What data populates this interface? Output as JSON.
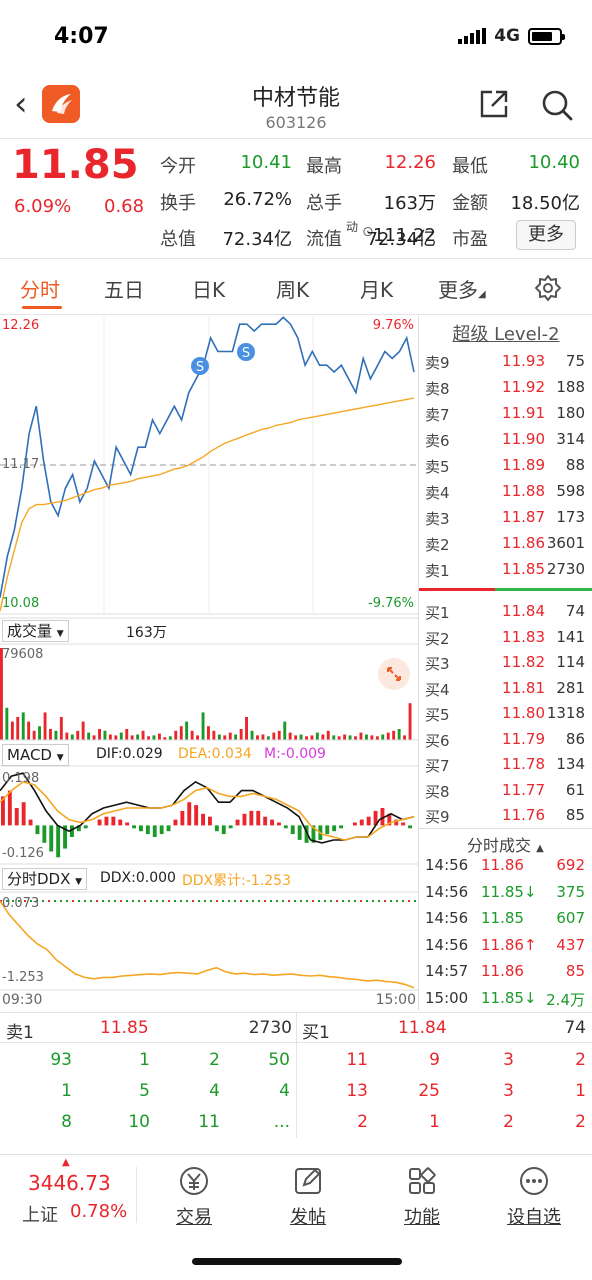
{
  "status_bar": {
    "time": "4:07",
    "network": "4G"
  },
  "header": {
    "stock_name": "中材节能",
    "stock_code": "603126"
  },
  "quote": {
    "price": "11.85",
    "change_pct": "6.09%",
    "change": "0.68",
    "fields": [
      {
        "label": "今开",
        "value": "10.41",
        "color": "green"
      },
      {
        "label": "最高",
        "value": "12.26",
        "color": "red"
      },
      {
        "label": "最低",
        "value": "10.40",
        "color": "green"
      },
      {
        "label": "换手",
        "value": "26.72%",
        "color": "black"
      },
      {
        "label": "总手",
        "value": "163万",
        "color": "black"
      },
      {
        "label": "金额",
        "value": "18.50亿",
        "color": "black"
      },
      {
        "label": "总值",
        "value": "72.34亿",
        "color": "black"
      },
      {
        "label": "流值",
        "value": "72.34亿",
        "color": "black"
      },
      {
        "label": "市盈",
        "value": "111.22",
        "color": "black"
      }
    ],
    "pe_superscript": "动",
    "more_label": "更多"
  },
  "tabs": [
    "分时",
    "五日",
    "日K",
    "周K",
    "月K",
    "更多"
  ],
  "active_tab": 0,
  "chart_data": [
    {
      "type": "line",
      "name": "intraday",
      "y_top_label": "12.26",
      "y_bottom_label": "10.08",
      "y_mid_label": "11.17",
      "pct_top_label": "9.76%",
      "pct_bottom_label": "-9.76%",
      "ylim": [
        10.08,
        12.26
      ],
      "x_start": "09:30",
      "x_end": "15:00",
      "series": [
        {
          "values": [
            10.2,
            10.5,
            10.7,
            11.0,
            11.4,
            11.6,
            11.2,
            10.9,
            10.8,
            11.0,
            11.1,
            10.9,
            11.0,
            11.2,
            11.1,
            11.0,
            11.3,
            11.2,
            11.1,
            11.3,
            11.3,
            11.5,
            11.4,
            11.5,
            11.6,
            11.5,
            11.7,
            11.8,
            11.9,
            12.1,
            12.0,
            12.0,
            12.0,
            12.2,
            12.2,
            12.15,
            12.2,
            12.2,
            12.2,
            12.25,
            12.2,
            12.1,
            11.9,
            12.0,
            11.9,
            11.9,
            11.85,
            11.9,
            11.8,
            11.7,
            11.95,
            11.8,
            11.9,
            12.0,
            11.95,
            12.0,
            12.1,
            11.85
          ]
        },
        {
          "values": [
            10.1,
            10.35,
            10.55,
            10.75,
            10.85,
            10.88,
            10.88,
            10.89,
            10.9,
            10.91,
            10.93,
            10.95,
            10.97,
            10.99,
            11.0,
            11.02,
            11.03,
            11.04,
            11.05,
            11.07,
            11.08,
            11.09,
            11.1,
            11.12,
            11.14,
            11.15,
            11.17,
            11.2,
            11.23,
            11.27,
            11.3,
            11.33,
            11.35,
            11.37,
            11.39,
            11.41,
            11.43,
            11.44,
            11.46,
            11.47,
            11.48,
            11.5,
            11.51,
            11.52,
            11.53,
            11.54,
            11.55,
            11.56,
            11.57,
            11.58,
            11.59,
            11.6,
            11.61,
            11.62,
            11.63,
            11.64,
            11.65,
            11.66
          ]
        }
      ],
      "markers": [
        "S",
        "S"
      ]
    },
    {
      "type": "bar",
      "name": "volume",
      "label": "成交量",
      "total_label": "163万",
      "max_label": "79608",
      "values": [
        1.0,
        0.35,
        0.2,
        0.25,
        0.3,
        0.2,
        0.1,
        0.15,
        0.3,
        0.12,
        0.1,
        0.25,
        0.08,
        0.06,
        0.1,
        0.2,
        0.08,
        0.05,
        0.12,
        0.1,
        0.06,
        0.05,
        0.08,
        0.12,
        0.05,
        0.06,
        0.1,
        0.04,
        0.05,
        0.07,
        0.03,
        0.04,
        0.1,
        0.15,
        0.2,
        0.1,
        0.05,
        0.3,
        0.15,
        0.1,
        0.06,
        0.05,
        0.08,
        0.06,
        0.12,
        0.25,
        0.1,
        0.05,
        0.06,
        0.04,
        0.08,
        0.1,
        0.2,
        0.08,
        0.05,
        0.06,
        0.04,
        0.05,
        0.08,
        0.06,
        0.1,
        0.05,
        0.04,
        0.06,
        0.05,
        0.04,
        0.08,
        0.06,
        0.05,
        0.04,
        0.06,
        0.08,
        0.1,
        0.12,
        0.05,
        0.4
      ]
    },
    {
      "type": "bar",
      "name": "macd",
      "label": "MACD",
      "dif_label": "DIF:0.029",
      "dea_label": "DEA:0.034",
      "m_label": "M:-0.009",
      "y_top_label": "0.198",
      "y_bottom_label": "-0.126",
      "ylim": [
        -0.126,
        0.198
      ],
      "values": [
        0.1,
        0.12,
        0.06,
        0.08,
        0.02,
        -0.03,
        -0.06,
        -0.09,
        -0.11,
        -0.08,
        -0.04,
        -0.02,
        -0.01,
        0.0,
        0.02,
        0.03,
        0.03,
        0.02,
        0.01,
        -0.01,
        -0.02,
        -0.03,
        -0.04,
        -0.03,
        -0.02,
        0.02,
        0.05,
        0.08,
        0.07,
        0.04,
        0.03,
        -0.02,
        -0.03,
        -0.01,
        0.02,
        0.04,
        0.05,
        0.05,
        0.03,
        0.02,
        0.01,
        -0.01,
        -0.03,
        -0.05,
        -0.06,
        -0.06,
        -0.05,
        -0.03,
        -0.02,
        -0.01,
        0.0,
        0.01,
        0.02,
        0.03,
        0.05,
        0.06,
        0.04,
        0.02,
        0.01,
        -0.01
      ],
      "dif": [
        0.12,
        0.17,
        0.18,
        0.12,
        0.05,
        0.0,
        -0.02,
        0.0,
        0.04,
        0.06,
        0.07,
        0.08,
        0.07,
        0.06,
        0.06,
        0.07,
        0.12,
        0.15,
        0.13,
        0.08,
        0.08,
        0.12,
        0.12,
        0.1,
        0.08,
        0.06,
        0.03,
        -0.05,
        -0.06,
        -0.05,
        -0.05,
        -0.04,
        -0.04,
        0.02,
        0.04,
        0.02,
        0.03
      ],
      "dea": [
        0.08,
        0.12,
        0.15,
        0.14,
        0.1,
        0.05,
        0.02,
        0.01,
        0.02,
        0.04,
        0.05,
        0.06,
        0.06,
        0.06,
        0.06,
        0.07,
        0.09,
        0.12,
        0.13,
        0.11,
        0.1,
        0.1,
        0.11,
        0.1,
        0.09,
        0.07,
        0.05,
        0.0,
        -0.03,
        -0.04,
        -0.05,
        -0.04,
        -0.04,
        -0.01,
        0.01,
        0.02,
        0.03
      ]
    },
    {
      "type": "line",
      "name": "ddx",
      "label": "分时DDX",
      "ddx_label": "DDX:0.000",
      "ddx_cum_label": "DDX累计:-1.253",
      "y_top_label": "0.073",
      "y_bottom_label": "-1.253",
      "ylim": [
        -1.253,
        0.073
      ],
      "x_start": "09:30",
      "x_end": "15:00",
      "values": [
        0.0,
        -0.2,
        -0.35,
        -0.5,
        -0.62,
        -0.7,
        -0.85,
        -0.95,
        -1.05,
        -1.1,
        -1.12,
        -1.1,
        -1.1,
        -1.08,
        -1.07,
        -1.06,
        -1.05,
        -1.06,
        -1.04,
        -1.03,
        -1.04,
        -1.05,
        -1.0,
        -0.96,
        -1.02,
        -1.05,
        -1.04,
        -1.06,
        -1.05,
        -1.07,
        -1.06,
        -1.05,
        -1.07,
        -1.08,
        -1.07,
        -1.09,
        -1.1,
        -1.12,
        -1.13,
        -1.15,
        -1.14,
        -1.16,
        -1.17,
        -1.2,
        -1.25
      ]
    }
  ],
  "level2": {
    "title": "超级 Level-2",
    "asks": [
      {
        "label": "卖9",
        "price": "11.93",
        "vol": "75"
      },
      {
        "label": "卖8",
        "price": "11.92",
        "vol": "188"
      },
      {
        "label": "卖7",
        "price": "11.91",
        "vol": "180"
      },
      {
        "label": "卖6",
        "price": "11.90",
        "vol": "314"
      },
      {
        "label": "卖5",
        "price": "11.89",
        "vol": "88"
      },
      {
        "label": "卖4",
        "price": "11.88",
        "vol": "598"
      },
      {
        "label": "卖3",
        "price": "11.87",
        "vol": "173"
      },
      {
        "label": "卖2",
        "price": "11.86",
        "vol": "3601"
      },
      {
        "label": "卖1",
        "price": "11.85",
        "vol": "2730"
      }
    ],
    "bids": [
      {
        "label": "买1",
        "price": "11.84",
        "vol": "74"
      },
      {
        "label": "买2",
        "price": "11.83",
        "vol": "141"
      },
      {
        "label": "买3",
        "price": "11.82",
        "vol": "114"
      },
      {
        "label": "买4",
        "price": "11.81",
        "vol": "281"
      },
      {
        "label": "买5",
        "price": "11.80",
        "vol": "1318"
      },
      {
        "label": "买6",
        "price": "11.79",
        "vol": "86"
      },
      {
        "label": "买7",
        "price": "11.78",
        "vol": "134"
      },
      {
        "label": "买8",
        "price": "11.77",
        "vol": "61"
      },
      {
        "label": "买9",
        "price": "11.76",
        "vol": "85"
      }
    ],
    "ticks_title": "分时成交",
    "ticks": [
      {
        "time": "14:56",
        "price": "11.86",
        "vol": "692",
        "color": "red"
      },
      {
        "time": "14:56",
        "price": "11.85↓",
        "vol": "375",
        "color": "green"
      },
      {
        "time": "14:56",
        "price": "11.85",
        "vol": "607",
        "color": "green"
      },
      {
        "time": "14:56",
        "price": "11.86↑",
        "vol": "437",
        "color": "red"
      },
      {
        "time": "14:57",
        "price": "11.86",
        "vol": "85",
        "color": "red"
      },
      {
        "time": "15:00",
        "price": "11.85↓",
        "vol": "2.4万",
        "color": "green"
      }
    ]
  },
  "bottom_book": {
    "sell_label": "卖1",
    "sell_price": "11.85",
    "sell_vol": "2730",
    "buy_label": "买1",
    "buy_price": "11.84",
    "buy_vol": "74",
    "sell_queue": [
      [
        "93",
        "1",
        "2",
        "50"
      ],
      [
        "1",
        "5",
        "4",
        "4"
      ],
      [
        "8",
        "10",
        "11",
        "..."
      ]
    ],
    "buy_queue": [
      [
        "11",
        "9",
        "3",
        "2"
      ],
      [
        "13",
        "25",
        "3",
        "1"
      ],
      [
        "2",
        "1",
        "2",
        "2"
      ]
    ]
  },
  "nav": {
    "index_value": "3446.73",
    "index_name": "上证",
    "index_pct": "0.78%",
    "items": [
      {
        "label": "交易",
        "icon": "yen-trade-icon"
      },
      {
        "label": "发帖",
        "icon": "edit-post-icon"
      },
      {
        "label": "功能",
        "icon": "grid-function-icon"
      },
      {
        "label": "设自选",
        "icon": "more-dots-icon"
      }
    ]
  }
}
